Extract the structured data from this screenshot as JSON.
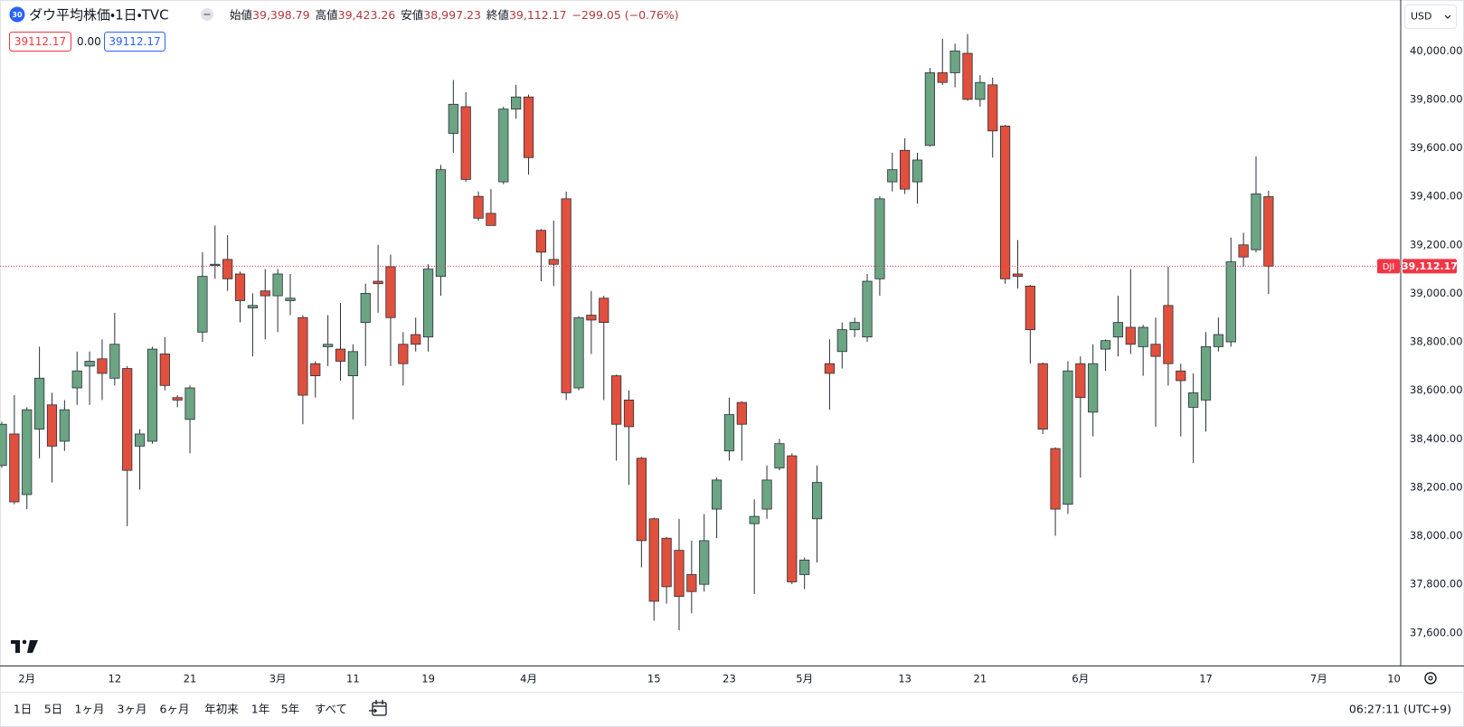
{
  "chart_data": {
    "type": "candlestick",
    "categories": [
      null,
      null,
      "2月",
      null,
      null,
      null,
      null,
      null,
      null,
      "12",
      null,
      null,
      null,
      null,
      null,
      "21",
      null,
      null,
      null,
      null,
      null,
      null,
      "3月",
      null,
      null,
      null,
      null,
      null,
      "11",
      null,
      null,
      null,
      null,
      null,
      "19",
      null,
      null,
      null,
      null,
      null,
      null,
      null,
      "4月",
      null,
      null,
      null,
      null,
      null,
      null,
      null,
      null,
      null,
      "15",
      null,
      null,
      null,
      null,
      null,
      "23",
      null,
      null,
      null,
      null,
      null,
      "5月",
      null,
      null,
      null,
      null,
      null,
      null,
      null,
      "13",
      null,
      null,
      null,
      null,
      null,
      "21",
      null,
      null,
      null,
      null,
      null,
      null,
      null,
      "6月",
      null,
      null,
      null,
      null,
      null,
      null,
      null,
      null,
      null,
      "17",
      null,
      null,
      null,
      null,
      null,
      null,
      null,
      null,
      "7月",
      null,
      null,
      null,
      null,
      null,
      "10"
    ],
    "open": [
      38290,
      38420,
      38170,
      38440,
      38540,
      38390,
      38610,
      38700,
      38730,
      38650,
      38690,
      38370,
      38390,
      38750,
      38570,
      38480,
      38840,
      39115,
      39140,
      39080,
      38940,
      39010,
      38990,
      38970,
      38900,
      38710,
      38780,
      38770,
      38660,
      38880,
      39050,
      39110,
      38790,
      38830,
      38820,
      39070,
      39660,
      39770,
      39400,
      39330,
      39460,
      39760,
      39810,
      39260,
      39140,
      39390,
      38610,
      38910,
      38980,
      38660,
      38560,
      38320,
      38070,
      37990,
      37940,
      37840,
      37800,
      38110,
      38350,
      38550,
      38050,
      38110,
      38280,
      38330,
      37840,
      38070,
      38710,
      38760,
      38850,
      38820,
      39060,
      39460,
      39590,
      39460,
      39610,
      39910,
      39910,
      39990,
      39800,
      39860,
      39690,
      39080,
      39030,
      38710,
      38360,
      38130,
      38710,
      38510,
      38770,
      38820,
      38860,
      38780,
      38790,
      38950,
      38680,
      38530,
      38560,
      38780,
      38800,
      39200,
      39180,
      39398.79,
      null,
      null,
      null,
      null,
      null,
      null,
      null,
      null,
      null,
      null
    ],
    "high": [
      38470,
      38580,
      38530,
      38780,
      38590,
      38560,
      38760,
      38760,
      38810,
      38920,
      38700,
      38440,
      38780,
      38820,
      38580,
      38620,
      39170,
      39280,
      39240,
      39090,
      39000,
      39100,
      39100,
      39080,
      38910,
      38720,
      38910,
      38960,
      38790,
      39040,
      39200,
      39160,
      38840,
      38900,
      39120,
      39530,
      39880,
      39830,
      39420,
      39430,
      39770,
      39860,
      39820,
      39265,
      39300,
      39420,
      38905,
      39010,
      38990,
      38665,
      38600,
      38325,
      38075,
      37995,
      38070,
      37980,
      38090,
      38240,
      38570,
      38555,
      38150,
      38290,
      38400,
      38340,
      37910,
      38290,
      38810,
      38880,
      38900,
      39080,
      39400,
      39580,
      39640,
      39580,
      39930,
      40050,
      40030,
      40070,
      39900,
      39890,
      39695,
      39220,
      39035,
      38715,
      38365,
      38720,
      38740,
      38790,
      38810,
      38990,
      39100,
      38870,
      38900,
      39110,
      38710,
      38670,
      38840,
      38900,
      39230,
      39250,
      39565,
      39423.26,
      null,
      null,
      null,
      null,
      null,
      null,
      null,
      null,
      null,
      null
    ],
    "low": [
      38280,
      38130,
      38110,
      38320,
      38220,
      38350,
      38540,
      38540,
      38560,
      38620,
      38040,
      38190,
      38380,
      38600,
      38530,
      38340,
      38800,
      39060,
      39010,
      38880,
      38740,
      38810,
      38840,
      38910,
      38460,
      38570,
      38700,
      38640,
      38480,
      38700,
      38920,
      38700,
      38620,
      38760,
      38760,
      38990,
      39580,
      39460,
      39300,
      39280,
      39450,
      39720,
      39490,
      39050,
      39030,
      38560,
      38600,
      38750,
      38560,
      38310,
      38210,
      37870,
      37650,
      37720,
      37610,
      37680,
      37770,
      37990,
      38310,
      38310,
      37760,
      38070,
      38270,
      37800,
      37780,
      37890,
      38520,
      38690,
      38820,
      38800,
      38990,
      39420,
      39410,
      39370,
      39605,
      39860,
      39850,
      39795,
      39770,
      39560,
      39040,
      39020,
      38710,
      38420,
      38000,
      38090,
      38240,
      38410,
      38680,
      38740,
      38750,
      38660,
      38450,
      38620,
      38410,
      38300,
      38430,
      38760,
      38780,
      39110,
      39170,
      38997.23,
      null,
      null,
      null,
      null,
      null,
      null,
      null,
      null,
      null,
      null
    ],
    "close": [
      38460,
      38140,
      38520,
      38650,
      38370,
      38520,
      38680,
      38720,
      38670,
      38790,
      38270,
      38420,
      38770,
      38620,
      38560,
      38610,
      39070,
      39120,
      39060,
      38970,
      38950,
      38990,
      39080,
      38980,
      38580,
      38660,
      38790,
      38720,
      38760,
      39000,
      39040,
      38900,
      38710,
      38790,
      39100,
      39510,
      39780,
      39470,
      39310,
      39280,
      39760,
      39810,
      39560,
      39170,
      39120,
      38590,
      38900,
      38890,
      38880,
      38460,
      38450,
      37980,
      37730,
      37790,
      37750,
      37770,
      37980,
      38230,
      38500,
      38460,
      38080,
      38230,
      38380,
      37810,
      37900,
      38220,
      38670,
      38850,
      38880,
      39050,
      39390,
      39510,
      39430,
      39550,
      39910,
      39870,
      40000,
      39800,
      39870,
      39670,
      39060,
      39070,
      38850,
      38440,
      38110,
      38680,
      38570,
      38710,
      38805,
      38880,
      38790,
      38860,
      38740,
      38710,
      38640,
      38590,
      38780,
      38830,
      39130,
      39150,
      39410,
      39112.17,
      null,
      null,
      null,
      null,
      null,
      null,
      null,
      null,
      null,
      null
    ],
    "up_color": "#6ba583",
    "down_color": "#e0503c",
    "ylim": [
      37465,
      40210
    ],
    "yticks": [
      {
        "value": 37600,
        "label": "37,600.00"
      },
      {
        "value": 37800,
        "label": "37,800.00"
      },
      {
        "value": 38000,
        "label": "38,000.00"
      },
      {
        "value": 38200,
        "label": "38,200.00"
      },
      {
        "value": 38400,
        "label": "38,400.00"
      },
      {
        "value": 38600,
        "label": "38,600.00"
      },
      {
        "value": 38800,
        "label": "38,800.00"
      },
      {
        "value": 39000,
        "label": "39,000.00"
      },
      {
        "value": 39200,
        "label": "39,200.00"
      },
      {
        "value": 39400,
        "label": "39,400.00"
      },
      {
        "value": 39600,
        "label": "39,600.00"
      },
      {
        "value": 39800,
        "label": "39,800.00"
      },
      {
        "value": 40000,
        "label": "40,000.00"
      }
    ],
    "grid": false,
    "last_price": {
      "value": 39112.17,
      "label": "39,112.17",
      "symbol": "DJI",
      "color": "#f23645"
    }
  },
  "ui": {
    "badge": "30",
    "symbol": "ダウ平均株価・1日・TVC",
    "ohlc": [
      {
        "label": "始値",
        "value": "39,398.79"
      },
      {
        "label": "高値",
        "value": "39,423.26"
      },
      {
        "label": "安値",
        "value": "38,997.23"
      },
      {
        "label": "終値",
        "value": "39,112.17"
      }
    ],
    "change": "−299.05 (−0.76%)",
    "inputs": [
      "39112.17",
      "0.00",
      "39112.17"
    ],
    "currency": "USD",
    "ranges": [
      "1日",
      "5日",
      "1ヶ月",
      "3ヶ月",
      "6ヶ月",
      "年初来",
      "1年",
      "5年",
      "すべて"
    ],
    "clock": "06:27:11 (UTC+9)"
  }
}
